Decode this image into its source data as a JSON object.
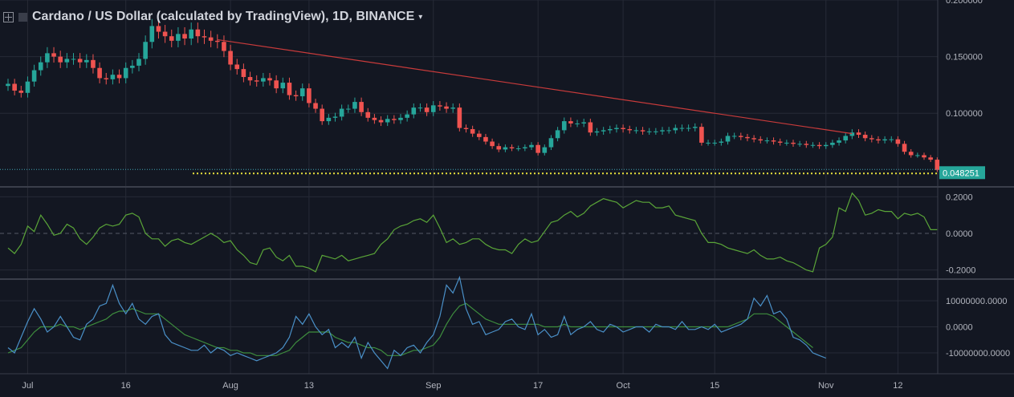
{
  "header": {
    "title": "Cardano / US Dollar (calculated by TradingView), 1D, BINANCE",
    "caret": "▾"
  },
  "colors": {
    "bg": "#131722",
    "grid": "#262a36",
    "up": "#26a69a",
    "down": "#ef5350",
    "trend": "#c93b3b",
    "osc": "#5aa538",
    "osc2": "#3e8e3e",
    "sig": "#4a90c8",
    "dotted": "#e8e03c",
    "label_bg": "#26a69a",
    "axis_text": "#b2b5be",
    "sep": "#3a3e4a"
  },
  "chart_data": [
    {
      "type": "candlestick",
      "name": "price",
      "x_ticks": [
        {
          "label": "Jul",
          "i": 3
        },
        {
          "label": "16",
          "i": 18
        },
        {
          "label": "Aug",
          "i": 34
        },
        {
          "label": "13",
          "i": 46
        },
        {
          "label": "Sep",
          "i": 65
        },
        {
          "label": "17",
          "i": 81
        },
        {
          "label": "Oct",
          "i": 94
        },
        {
          "label": "15",
          "i": 108
        },
        {
          "label": "Nov",
          "i": 125
        },
        {
          "label": "12",
          "i": 136
        }
      ],
      "y_ticks": [
        0.2,
        0.15,
        0.1
      ],
      "y_tick_labels": [
        "0.200000",
        "0.150000",
        "0.100000"
      ],
      "ylim": [
        0.035,
        0.2
      ],
      "last_price_label": "0.048251",
      "last_price": 0.048251,
      "trendline": [
        [
          32,
          0.165
        ],
        [
          129,
          0.082
        ]
      ],
      "closes": [
        0.126,
        0.12,
        0.118,
        0.128,
        0.138,
        0.145,
        0.153,
        0.15,
        0.145,
        0.148,
        0.148,
        0.145,
        0.147,
        0.14,
        0.131,
        0.13,
        0.134,
        0.131,
        0.14,
        0.142,
        0.148,
        0.163,
        0.177,
        0.172,
        0.168,
        0.164,
        0.17,
        0.166,
        0.174,
        0.168,
        0.167,
        0.164,
        0.163,
        0.155,
        0.143,
        0.139,
        0.132,
        0.129,
        0.128,
        0.131,
        0.129,
        0.122,
        0.127,
        0.116,
        0.115,
        0.122,
        0.109,
        0.104,
        0.093,
        0.096,
        0.097,
        0.104,
        0.104,
        0.11,
        0.101,
        0.096,
        0.094,
        0.092,
        0.095,
        0.094,
        0.096,
        0.099,
        0.105,
        0.105,
        0.101,
        0.107,
        0.106,
        0.104,
        0.105,
        0.087,
        0.086,
        0.082,
        0.079,
        0.075,
        0.071,
        0.068,
        0.07,
        0.069,
        0.069,
        0.07,
        0.072,
        0.065,
        0.07,
        0.078,
        0.085,
        0.093,
        0.091,
        0.091,
        0.092,
        0.083,
        0.084,
        0.085,
        0.086,
        0.087,
        0.086,
        0.085,
        0.085,
        0.084,
        0.084,
        0.084,
        0.085,
        0.085,
        0.087,
        0.087,
        0.087,
        0.088,
        0.074,
        0.074,
        0.074,
        0.075,
        0.08,
        0.08,
        0.079,
        0.078,
        0.077,
        0.076,
        0.076,
        0.075,
        0.074,
        0.074,
        0.073,
        0.073,
        0.072,
        0.072,
        0.071,
        0.072,
        0.074,
        0.076,
        0.08,
        0.083,
        0.081,
        0.078,
        0.077,
        0.076,
        0.077,
        0.077,
        0.073,
        0.066,
        0.063,
        0.063,
        0.061,
        0.059,
        0.05,
        0.048
      ]
    },
    {
      "type": "line",
      "name": "oscillator",
      "y_ticks": [
        0.2,
        0.0,
        -0.2
      ],
      "y_tick_labels": [
        "0.2000",
        "0.0000",
        "-0.2000"
      ],
      "ylim": [
        -0.25,
        0.25
      ],
      "values": [
        -0.08,
        -0.11,
        -0.06,
        0.04,
        0.01,
        0.1,
        0.05,
        -0.01,
        0.0,
        0.05,
        0.03,
        -0.03,
        -0.06,
        -0.02,
        0.03,
        0.05,
        0.04,
        0.05,
        0.1,
        0.11,
        0.09,
        0.0,
        -0.03,
        -0.03,
        -0.07,
        -0.04,
        -0.03,
        -0.05,
        -0.06,
        -0.04,
        -0.02,
        0.0,
        -0.02,
        -0.05,
        -0.04,
        -0.09,
        -0.12,
        -0.16,
        -0.17,
        -0.09,
        -0.08,
        -0.13,
        -0.15,
        -0.12,
        -0.18,
        -0.18,
        -0.19,
        -0.21,
        -0.12,
        -0.13,
        -0.14,
        -0.12,
        -0.15,
        -0.14,
        -0.13,
        -0.12,
        -0.11,
        -0.06,
        -0.03,
        0.02,
        0.04,
        0.05,
        0.07,
        0.08,
        0.06,
        0.1,
        0.03,
        -0.05,
        -0.03,
        -0.06,
        -0.05,
        -0.03,
        -0.03,
        -0.06,
        -0.08,
        -0.09,
        -0.09,
        -0.11,
        -0.06,
        -0.03,
        -0.05,
        -0.04,
        0.01,
        0.06,
        0.07,
        0.1,
        0.12,
        0.09,
        0.11,
        0.15,
        0.17,
        0.19,
        0.18,
        0.17,
        0.14,
        0.16,
        0.18,
        0.17,
        0.17,
        0.14,
        0.14,
        0.15,
        0.1,
        0.09,
        0.08,
        0.07,
        0.0,
        -0.05,
        -0.05,
        -0.06,
        -0.08,
        -0.09,
        -0.1,
        -0.11,
        -0.09,
        -0.12,
        -0.14,
        -0.14,
        -0.13,
        -0.15,
        -0.16,
        -0.18,
        -0.2,
        -0.21,
        -0.08,
        -0.06,
        -0.02,
        0.14,
        0.12,
        0.22,
        0.18,
        0.1,
        0.11,
        0.13,
        0.12,
        0.12,
        0.08,
        0.11,
        0.1,
        0.11,
        0.09,
        0.02,
        0.02
      ]
    },
    {
      "type": "line",
      "name": "volume-oscillator",
      "y_ticks": [
        10000000,
        0,
        -10000000
      ],
      "y_tick_labels": [
        "10000000.0000",
        "0.0000",
        "-10000000.0000"
      ],
      "ylim": [
        -18000000,
        18000000
      ],
      "series": [
        {
          "name": "",
          "values": [
            -8000000,
            -10000000,
            -4000000,
            2000000,
            7000000,
            3000000,
            -2000000,
            0,
            4000000,
            0,
            -4000000,
            -5000000,
            1000000,
            3000000,
            8000000,
            9000000,
            16000000,
            9000000,
            5000000,
            9000000,
            3000000,
            1000000,
            4000000,
            5000000,
            -3000000,
            -6000000,
            -7000000,
            -8000000,
            -9000000,
            -9000000,
            -7000000,
            -10000000,
            -8000000,
            -9000000,
            -11000000,
            -10000000,
            -11000000,
            -12000000,
            -13000000,
            -12000000,
            -11000000,
            -10000000,
            -8000000,
            -4000000,
            4000000,
            1000000,
            5000000,
            0,
            -3000000,
            -1000000,
            -8000000,
            -6000000,
            -8000000,
            -4000000,
            -12000000,
            -6000000,
            -10000000,
            -13000000,
            -16000000,
            -9000000,
            -11000000,
            -8000000,
            -7000000,
            -10000000,
            -6000000,
            -3000000,
            4000000,
            16000000,
            13000000,
            19000000,
            7000000,
            1000000,
            2000000,
            -3000000,
            -2000000,
            -1000000,
            2000000,
            3000000,
            0,
            -1000000,
            5000000,
            -3000000,
            -1000000,
            -4000000,
            -3000000,
            4000000,
            -3000000,
            -1000000,
            0,
            2000000,
            -1000000,
            -2000000,
            1000000,
            0,
            -2000000,
            -1000000,
            0,
            0,
            -2000000,
            1000000,
            0,
            0,
            -1000000,
            2000000,
            -1000000,
            -1000000,
            0,
            -1000000,
            1000000,
            -2000000,
            -1000000,
            0,
            1000000,
            3000000,
            11000000,
            8000000,
            12000000,
            5000000,
            6000000,
            3000000,
            -4000000,
            -5000000,
            -7000000,
            -10000000,
            -11000000,
            -12000000
          ]
        },
        {
          "name": "",
          "values": [
            -10000000,
            -9000000,
            -8000000,
            -5000000,
            -2000000,
            0,
            0,
            0,
            1000000,
            0,
            0,
            -1000000,
            0,
            1000000,
            2000000,
            3000000,
            5000000,
            6000000,
            6000000,
            7000000,
            6000000,
            5000000,
            5000000,
            5000000,
            3000000,
            1000000,
            -1000000,
            -3000000,
            -4000000,
            -5000000,
            -6000000,
            -7000000,
            -8000000,
            -8000000,
            -9000000,
            -9000000,
            -10000000,
            -10000000,
            -11000000,
            -11000000,
            -11000000,
            -11000000,
            -10000000,
            -9000000,
            -6000000,
            -4000000,
            -2000000,
            -2000000,
            -2000000,
            -2000000,
            -4000000,
            -5000000,
            -6000000,
            -6000000,
            -7000000,
            -8000000,
            -8000000,
            -9000000,
            -11000000,
            -11000000,
            -11000000,
            -10000000,
            -9000000,
            -9000000,
            -8000000,
            -7000000,
            -4000000,
            1000000,
            5000000,
            8000000,
            9000000,
            7000000,
            5000000,
            3000000,
            2000000,
            1000000,
            1000000,
            1000000,
            1000000,
            1000000,
            1000000,
            1000000,
            0,
            0,
            0,
            1000000,
            0,
            0,
            0,
            0,
            0,
            0,
            0,
            0,
            0,
            0,
            0,
            0,
            0,
            0,
            0,
            0,
            0,
            0,
            0,
            0,
            0,
            0,
            0,
            0,
            0,
            1000000,
            2000000,
            3000000,
            5000000,
            5000000,
            5000000,
            4000000,
            2000000,
            0,
            -2000000,
            -4000000,
            -6000000,
            -8000000
          ]
        }
      ]
    }
  ]
}
